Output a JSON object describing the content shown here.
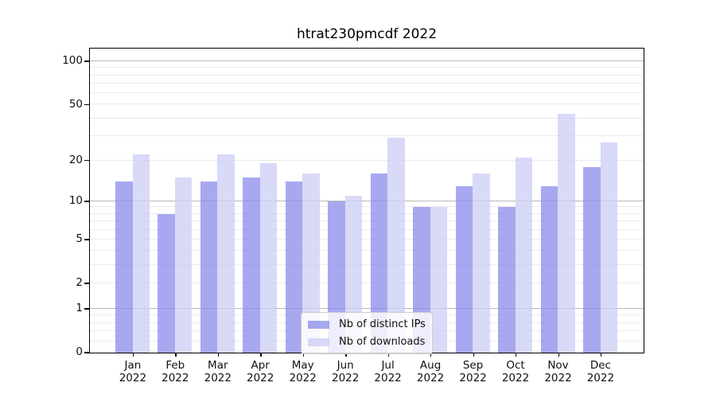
{
  "chart_data": {
    "type": "bar",
    "title": "htrat230pmcdf 2022",
    "categories": [
      "Jan",
      "Feb",
      "Mar",
      "Apr",
      "May",
      "Jun",
      "Jul",
      "Aug",
      "Sep",
      "Oct",
      "Nov",
      "Dec"
    ],
    "year": "2022",
    "series": [
      {
        "name": "Nb of distinct IPs",
        "color": "#8686ea",
        "alpha": 0.72,
        "values": [
          14,
          8,
          14,
          15,
          14,
          10,
          16,
          9,
          13,
          9,
          13,
          18
        ]
      },
      {
        "name": "Nb of downloads",
        "color": "#cacaf5",
        "alpha": 0.72,
        "values": [
          22,
          15,
          22,
          19,
          16,
          11,
          29,
          9,
          16,
          21,
          43,
          27
        ]
      }
    ],
    "xlabel": "",
    "ylabel": "",
    "scale": "log1p",
    "ylim": [
      0,
      100
    ],
    "y_tick_labels": [
      "100",
      "50",
      "20",
      "10",
      "5",
      "2",
      "1",
      "0"
    ],
    "y_tick_values": [
      100,
      50,
      20,
      10,
      5,
      2,
      1,
      0
    ],
    "major_gridlines": [
      1,
      10,
      100
    ],
    "minor_gridlines": [
      0.2,
      0.4,
      0.6,
      0.8,
      2,
      3,
      4,
      5,
      6,
      7,
      8,
      9,
      20,
      30,
      40,
      50,
      60,
      70,
      80,
      90
    ],
    "grid": true,
    "legend_position": "bottom-center",
    "colors": {
      "minor_grid": "#ebebeb",
      "major_grid": "#b9b9b9",
      "axis": "#000000"
    }
  }
}
